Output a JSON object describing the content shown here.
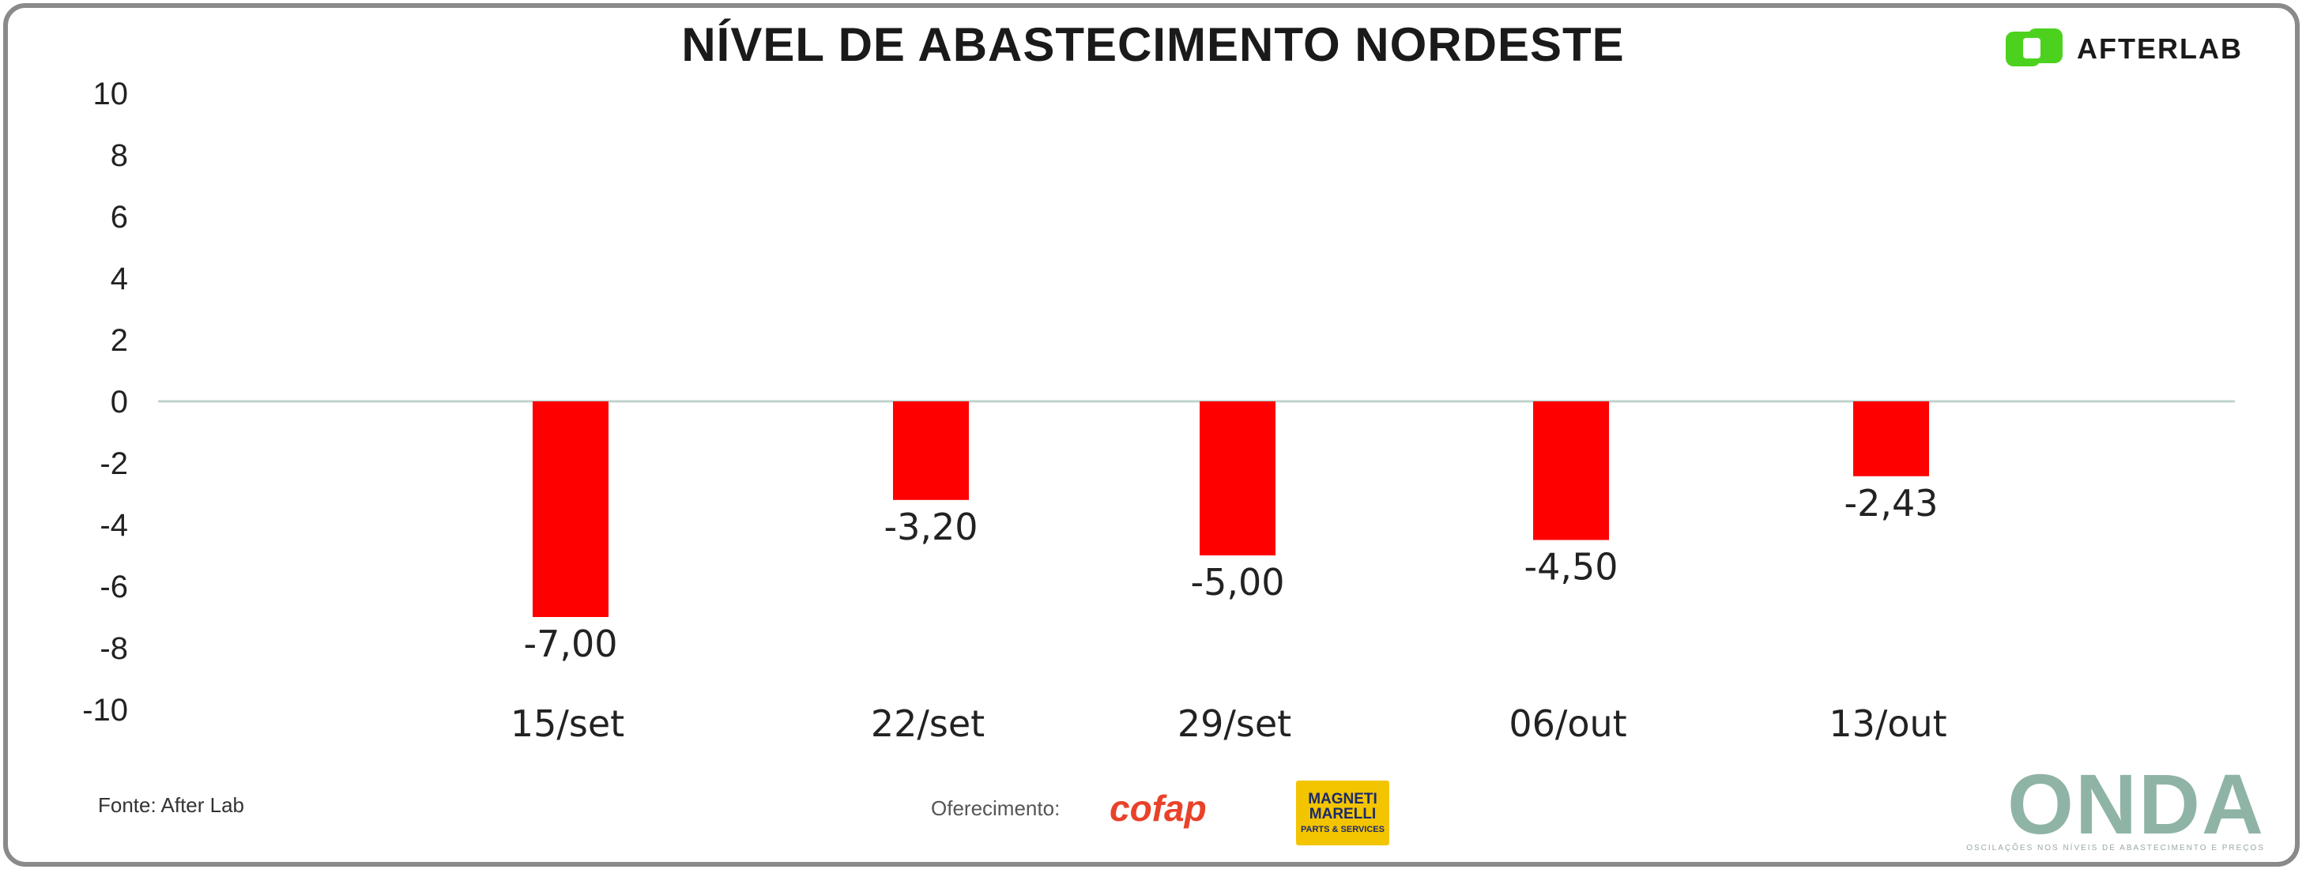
{
  "chart_data": {
    "type": "bar",
    "title": "NÍVEL DE ABASTECIMENTO NORDESTE",
    "categories": [
      "15/set",
      "22/set",
      "29/set",
      "06/out",
      "13/out"
    ],
    "values": [
      -7.0,
      -3.2,
      -5.0,
      -4.5,
      -2.43
    ],
    "data_labels": [
      "-7,00",
      "-3,20",
      "-5,00",
      "-4,50",
      "-2,43"
    ],
    "yticks": [
      "10",
      "8",
      "6",
      "4",
      "2",
      "0",
      "-2",
      "-4",
      "-6",
      "-8",
      "-10"
    ],
    "ylim": [
      -10,
      10
    ],
    "xlabel": "",
    "ylabel": "",
    "grid": false,
    "bar_color": "#ff0000",
    "zero_line_color": "#bfd3cc"
  },
  "logo": {
    "name": "AFTERLAB",
    "color": "#4cd21e"
  },
  "footer": {
    "source": "Fonte: After Lab",
    "sponsor_label": "Oferecimento:",
    "sponsors": [
      "cofap",
      "MAGNETI MARELLI"
    ],
    "sponsor_sub": "PARTS & SERVICES"
  },
  "brand": {
    "name": "ONDA",
    "tagline": "OSCILAÇÕES NOS NÍVEIS DE ABASTECIMENTO E PREÇOS"
  }
}
